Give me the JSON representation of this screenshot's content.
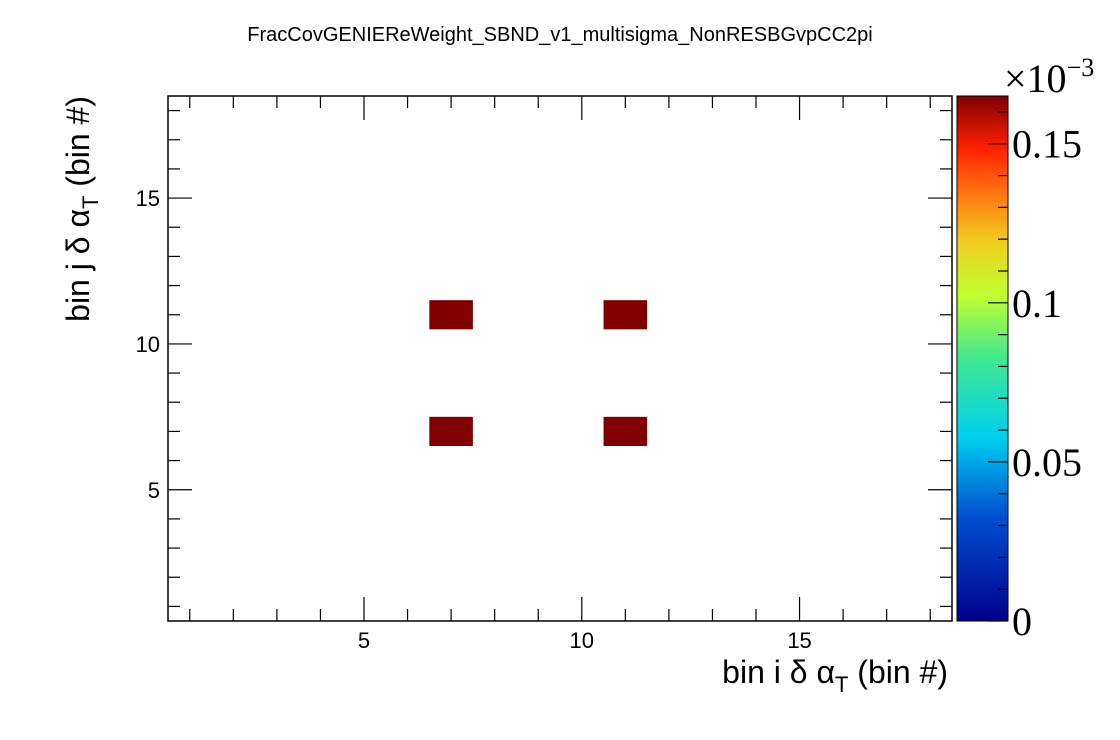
{
  "chart_data": {
    "type": "heatmap",
    "title": "FracCovGENIEReWeight_SBND_v1_multisigma_NonRESBGvpCC2pi",
    "xlabel": {
      "prefix": "bin i δ α",
      "sub": "T",
      "suffix": " (bin #)"
    },
    "ylabel": {
      "prefix": "bin j δ α",
      "sub": "T",
      "suffix": " (bin #)"
    },
    "xlim": [
      0.5,
      18.5
    ],
    "ylim": [
      0.5,
      18.5
    ],
    "x_ticks": [
      5,
      10,
      15
    ],
    "y_ticks": [
      5,
      10,
      15
    ],
    "zlim": [
      0,
      0.000165
    ],
    "z_ticks": [
      "0",
      "0.05",
      "0.1",
      "0.15"
    ],
    "z_tick_values": [
      0,
      0.05,
      0.1,
      0.15
    ],
    "z_multiplier": {
      "base": "×10",
      "exp": "−3"
    },
    "cells": [
      {
        "x": 7,
        "y": 7,
        "value": 0.000165
      },
      {
        "x": 11,
        "y": 7,
        "value": 0.000165
      },
      {
        "x": 7,
        "y": 11,
        "value": 0.000165
      },
      {
        "x": 11,
        "y": 11,
        "value": 0.000165
      }
    ]
  }
}
